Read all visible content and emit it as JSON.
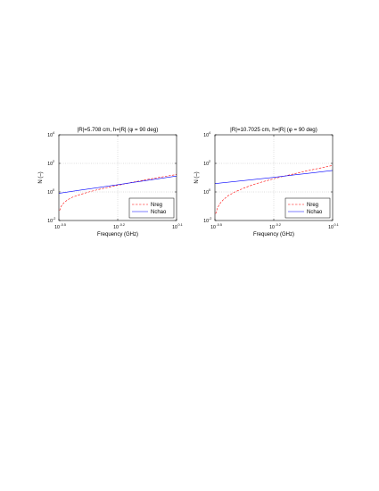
{
  "charts": [
    {
      "type": "line",
      "title": "|R|=5.708 cm, h=|R| (φ = 90 deg)",
      "xlabel": "Frequency (GHz)",
      "ylabel": "N (–)",
      "xscale": "log",
      "yscale": "log",
      "xlim": [
        0.3162,
        1.2589
      ],
      "ylim": [
        0.01,
        10000
      ],
      "x_ticks": [
        {
          "base": "10",
          "exp": "-0.5"
        },
        {
          "base": "10",
          "exp": "-0.2"
        },
        {
          "base": "10",
          "exp": "0.1"
        }
      ],
      "y_ticks": [
        {
          "base": "10",
          "exp": "-2"
        },
        {
          "base": "10",
          "exp": "0"
        },
        {
          "base": "10",
          "exp": "2"
        },
        {
          "base": "10",
          "exp": "4"
        }
      ],
      "grid": true,
      "legend_position": "bottom-right",
      "series": [
        {
          "name": "Nreg",
          "color": "#ff0000",
          "dash": "dashed",
          "x": [
            0.319,
            0.325,
            0.335,
            0.35,
            0.37,
            0.4,
            0.45,
            0.5,
            0.55,
            0.63,
            0.7,
            0.8,
            0.9,
            1.0,
            1.1,
            1.2589
          ],
          "y": [
            0.05,
            0.1,
            0.17,
            0.28,
            0.42,
            0.62,
            1.0,
            1.45,
            1.95,
            2.9,
            3.9,
            5.6,
            7.6,
            9.8,
            12.2,
            16.5
          ]
        },
        {
          "name": "Nchao",
          "color": "#0000ff",
          "dash": "solid",
          "x": [
            0.3162,
            0.4,
            0.5,
            0.63,
            0.8,
            1.0,
            1.2589
          ],
          "y": [
            0.8,
            1.29,
            2.0,
            3.2,
            5.2,
            8.1,
            13.0
          ]
        }
      ]
    },
    {
      "type": "line",
      "title": "|R|=10.7025 cm, h=|R| (φ = 90 deg)",
      "xlabel": "Frequency (GHz)",
      "ylabel": "N (–)",
      "xscale": "log",
      "yscale": "log",
      "xlim": [
        0.3162,
        1.2589
      ],
      "ylim": [
        0.01,
        10000
      ],
      "x_ticks": [
        {
          "base": "10",
          "exp": "-0.5"
        },
        {
          "base": "10",
          "exp": "-0.2"
        },
        {
          "base": "10",
          "exp": "0.1"
        }
      ],
      "y_ticks": [
        {
          "base": "10",
          "exp": "-2"
        },
        {
          "base": "10",
          "exp": "0"
        },
        {
          "base": "10",
          "exp": "2"
        },
        {
          "base": "10",
          "exp": "4"
        }
      ],
      "grid": true,
      "legend_position": "bottom-right",
      "series": [
        {
          "name": "Nreg",
          "color": "#ff0000",
          "dash": "dashed",
          "x": [
            0.319,
            0.325,
            0.335,
            0.35,
            0.37,
            0.4,
            0.45,
            0.5,
            0.55,
            0.63,
            0.7,
            0.8,
            0.9,
            1.0,
            1.1,
            1.2589
          ],
          "y": [
            0.03,
            0.07,
            0.15,
            0.3,
            0.55,
            1.0,
            2.0,
            3.4,
            5.0,
            8.3,
            12.0,
            18.5,
            27.0,
            37.0,
            48.0,
            72.0
          ]
        },
        {
          "name": "Nchao",
          "color": "#0000ff",
          "dash": "solid",
          "x": [
            0.3162,
            0.4,
            0.5,
            0.63,
            0.8,
            1.0,
            1.2589
          ],
          "y": [
            3.8,
            5.4,
            7.4,
            10.5,
            15.5,
            22.0,
            32.0
          ]
        }
      ]
    }
  ]
}
